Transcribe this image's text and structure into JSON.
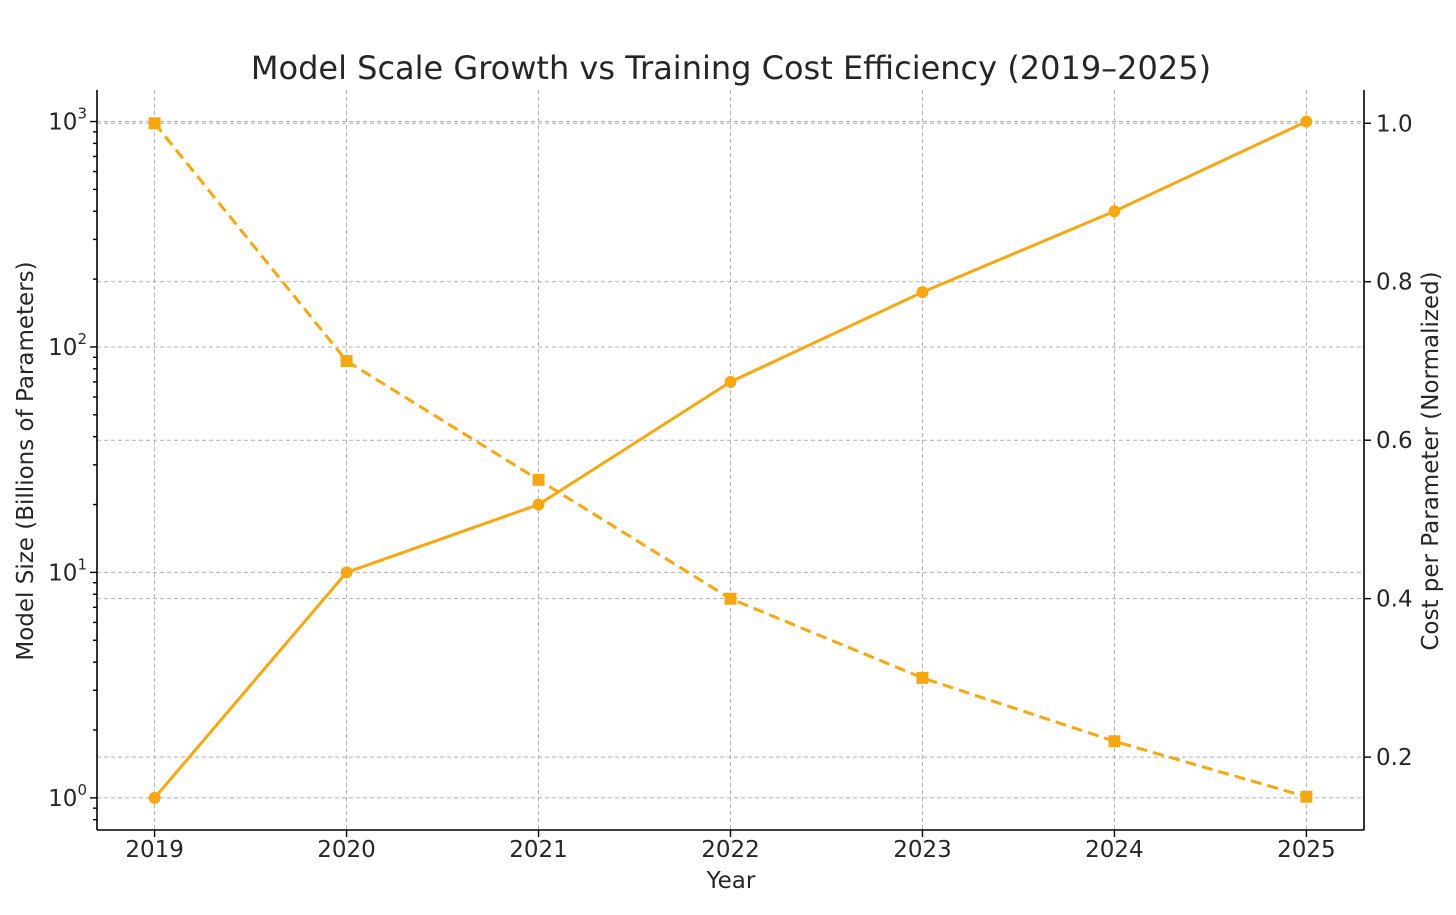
{
  "chart_data": {
    "type": "line",
    "title": "Model Scale Growth vs Training Cost Efficiency (2019–2025)",
    "xlabel": "Year",
    "x": [
      2019,
      2020,
      2021,
      2022,
      2023,
      2024,
      2025
    ],
    "y_left": {
      "label": "Model Size (Billions of Parameters)",
      "scale": "log",
      "range": [
        0.72,
        1380
      ],
      "ticks": [
        {
          "base": "10",
          "exp": "0",
          "value": 1
        },
        {
          "base": "10",
          "exp": "1",
          "value": 10
        },
        {
          "base": "10",
          "exp": "2",
          "value": 100
        },
        {
          "base": "10",
          "exp": "3",
          "value": 1000
        }
      ]
    },
    "y_right": {
      "label": "Cost per Parameter (Normalized)",
      "scale": "linear",
      "range": [
        0.108,
        1.042
      ],
      "ticks": [
        "0.2",
        "0.4",
        "0.6",
        "0.8",
        "1.0"
      ]
    },
    "series": [
      {
        "name": "Model Size",
        "axis": "left",
        "color": "#F5A814",
        "line_style": "solid",
        "marker": "circle",
        "values": [
          1,
          10,
          20,
          70,
          175,
          400,
          1000
        ]
      },
      {
        "name": "Cost per Parameter",
        "axis": "right",
        "color": "#F5A814",
        "line_style": "dashed",
        "marker": "square",
        "values": [
          1.0,
          0.7,
          0.55,
          0.4,
          0.3,
          0.22,
          0.15
        ]
      }
    ],
    "grid": true
  }
}
